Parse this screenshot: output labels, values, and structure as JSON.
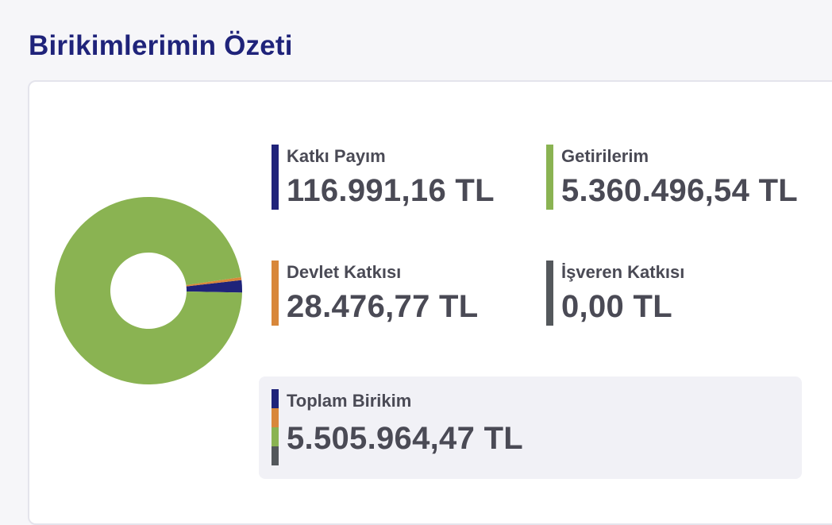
{
  "page": {
    "title": "Birikimlerimin Özeti"
  },
  "summary": {
    "contribution": {
      "label": "Katkı Payım",
      "value": "116.991,16 TL",
      "color": "#1f237a"
    },
    "returns": {
      "label": "Getirilerim",
      "value": "5.360.496,54 TL",
      "color": "#8ab352"
    },
    "state": {
      "label": "Devlet Katkısı",
      "value": "28.476,77 TL",
      "color": "#d8873a"
    },
    "employer": {
      "label": "İşveren Katkısı",
      "value": "0,00 TL",
      "color": "#54585c"
    },
    "total": {
      "label": "Toplam Birikim",
      "value": "5.505.964,47 TL"
    }
  },
  "chart_data": {
    "type": "pie",
    "series": [
      {
        "value": 116991.16,
        "color": "#1f237a"
      },
      {
        "value": 28476.77,
        "color": "#d8873a"
      },
      {
        "value": 5360496.54,
        "color": "#8ab352"
      },
      {
        "value": 0.0,
        "color": "#54585c"
      }
    ]
  }
}
